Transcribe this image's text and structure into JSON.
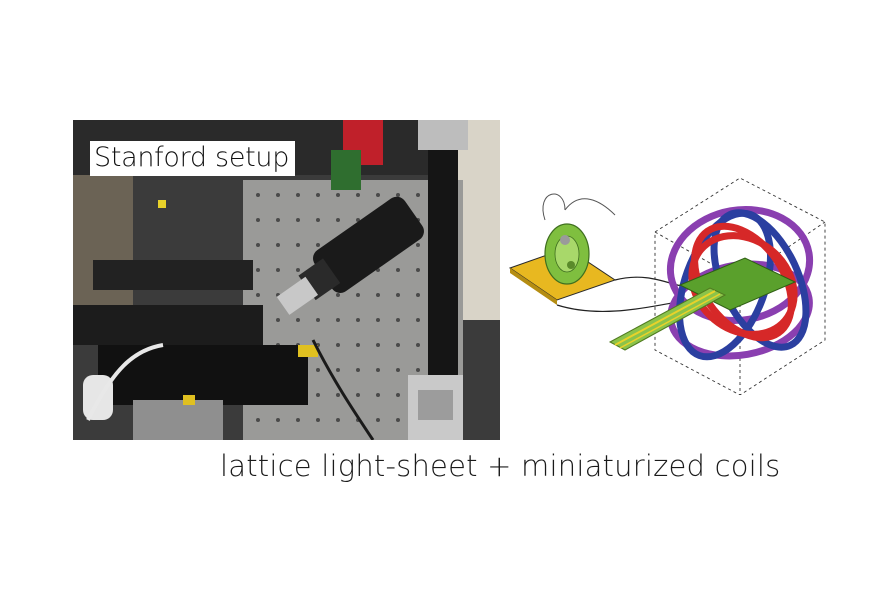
{
  "photo": {
    "label": "Stanford setup"
  },
  "caption": "lattice light-sheet + miniaturized coils",
  "colors": {
    "background": "#ffffff",
    "coil_red": "#d62828",
    "coil_blue": "#2b3fa0",
    "coil_purple": "#8a3fb0",
    "chip_green": "#5aa02c",
    "platform_yellow": "#e8b820",
    "cell_green": "#7fbf3f"
  },
  "icons": {
    "photo": "lab-optics-photo",
    "schematic": "coil-cube-schematic"
  }
}
